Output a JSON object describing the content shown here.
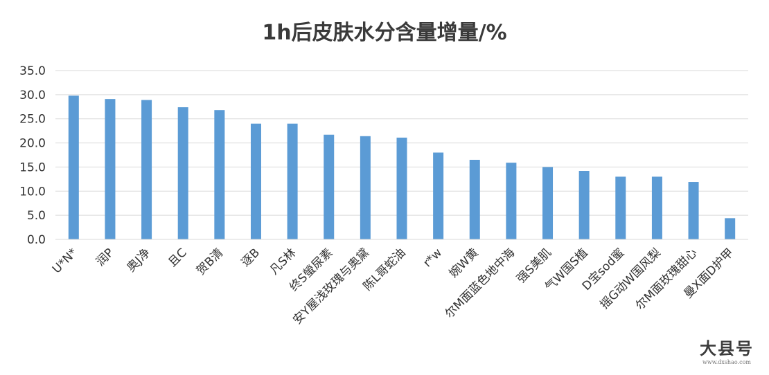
{
  "chart_data": {
    "type": "bar",
    "title": "1h后皮肤水分含量增量/%",
    "xlabel": "",
    "ylabel": "",
    "ylim": [
      0,
      35
    ],
    "yticks": [
      "0.0",
      "5.0",
      "10.0",
      "15.0",
      "20.0",
      "25.0",
      "30.0",
      "35.0"
    ],
    "grid": true,
    "bar_color": "#5b9bd5",
    "categories": [
      "U*N*",
      "润P",
      "奥J净",
      "且C",
      "贺B清",
      "逐B",
      "凡S林",
      "终S螢尿素",
      "安Y屋浅玫瑰与奥黛",
      "陈L哥蛇油",
      "r*w",
      "婉W黄",
      "尔M面蓝色地中海",
      "强S美肌",
      "气W国S植",
      "D宝sod蜜",
      "摇G动W国风梨",
      "尔M面玫瑰甜心",
      "曼X面D护甲"
    ],
    "values": [
      29.8,
      29.1,
      28.9,
      27.4,
      26.8,
      24.0,
      24.0,
      21.7,
      21.4,
      21.1,
      18.0,
      16.5,
      15.9,
      15.0,
      14.2,
      13.0,
      13.0,
      11.9,
      4.4
    ]
  },
  "watermark": {
    "main": "大县号",
    "sub": "www.dxshao.com"
  }
}
